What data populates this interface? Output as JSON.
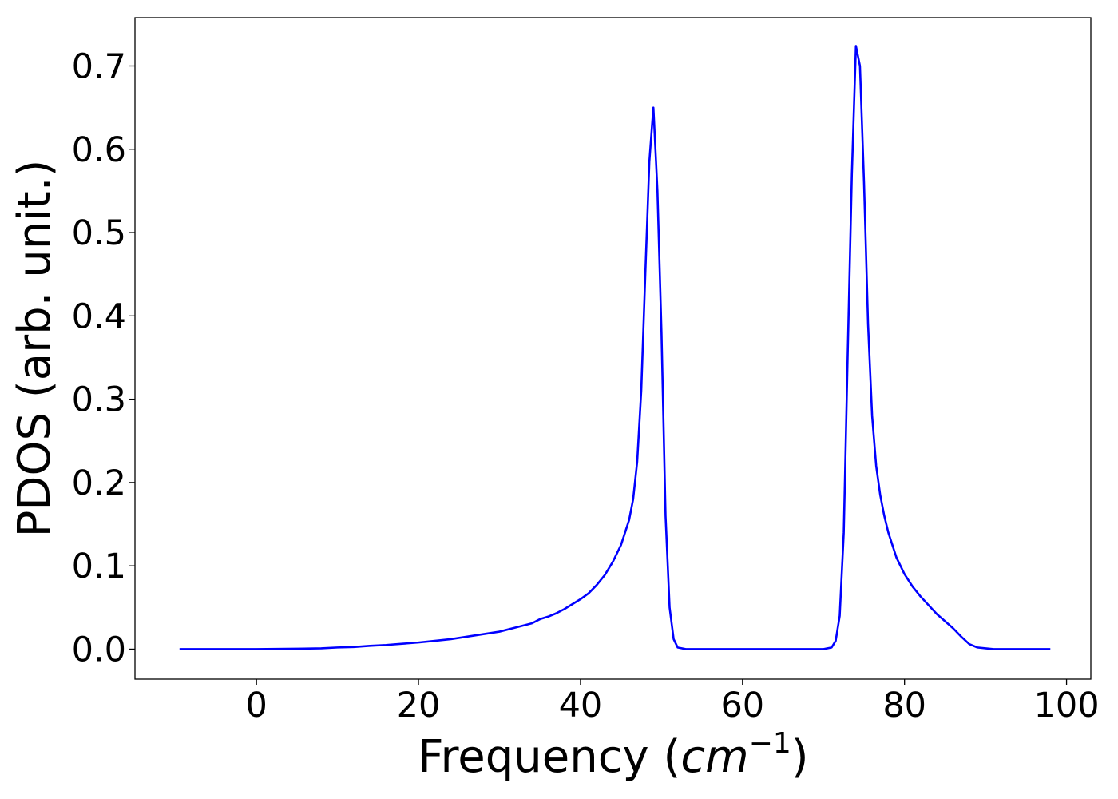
{
  "chart_data": {
    "type": "line",
    "xlabel": "Frequency (",
    "xlabel_math_base": "cm",
    "xlabel_math_sup": "−1",
    "xlabel_close": ")",
    "ylabel": "PDOS (arb. unit.)",
    "xlim": [
      -15,
      103
    ],
    "ylim": [
      -0.036,
      0.758
    ],
    "xticks": [
      0,
      20,
      40,
      60,
      80,
      100
    ],
    "xtick_labels": [
      "0",
      "20",
      "40",
      "60",
      "80",
      "100"
    ],
    "yticks": [
      0.0,
      0.1,
      0.2,
      0.3,
      0.4,
      0.5,
      0.6,
      0.7
    ],
    "ytick_labels": [
      "0.0",
      "0.1",
      "0.2",
      "0.3",
      "0.4",
      "0.5",
      "0.6",
      "0.7"
    ],
    "grid": false,
    "line_color": "#0000ff",
    "series": [
      {
        "x": [
          -9.5,
          0,
          5,
          8,
          10,
          12,
          14,
          16,
          18,
          20,
          22,
          24,
          26,
          28,
          30,
          32,
          34,
          35,
          36,
          37,
          38,
          39,
          40,
          41,
          42,
          43,
          44,
          45,
          45.5,
          46,
          46.5,
          47,
          47.5,
          48,
          48.5,
          49,
          49.5,
          50,
          50.5,
          51,
          51.5,
          52,
          53,
          60,
          70,
          71,
          71.5,
          72,
          72.5,
          73,
          73.5,
          74,
          74.5,
          75,
          75.5,
          76,
          76.5,
          77,
          77.5,
          78,
          79,
          80,
          81,
          82,
          84,
          86,
          87,
          88,
          89,
          90,
          91,
          92,
          98
        ],
        "y": [
          0,
          0,
          0.0005,
          0.001,
          0.002,
          0.0025,
          0.004,
          0.005,
          0.0065,
          0.008,
          0.01,
          0.012,
          0.015,
          0.018,
          0.021,
          0.026,
          0.031,
          0.036,
          0.039,
          0.043,
          0.048,
          0.054,
          0.06,
          0.067,
          0.077,
          0.089,
          0.105,
          0.125,
          0.14,
          0.155,
          0.18,
          0.225,
          0.31,
          0.45,
          0.585,
          0.65,
          0.55,
          0.38,
          0.16,
          0.05,
          0.012,
          0.002,
          0,
          0,
          0,
          0.002,
          0.01,
          0.04,
          0.14,
          0.36,
          0.57,
          0.724,
          0.7,
          0.56,
          0.39,
          0.28,
          0.22,
          0.185,
          0.16,
          0.14,
          0.11,
          0.09,
          0.075,
          0.063,
          0.042,
          0.025,
          0.015,
          0.006,
          0.002,
          0.001,
          0,
          0,
          0
        ]
      }
    ]
  }
}
